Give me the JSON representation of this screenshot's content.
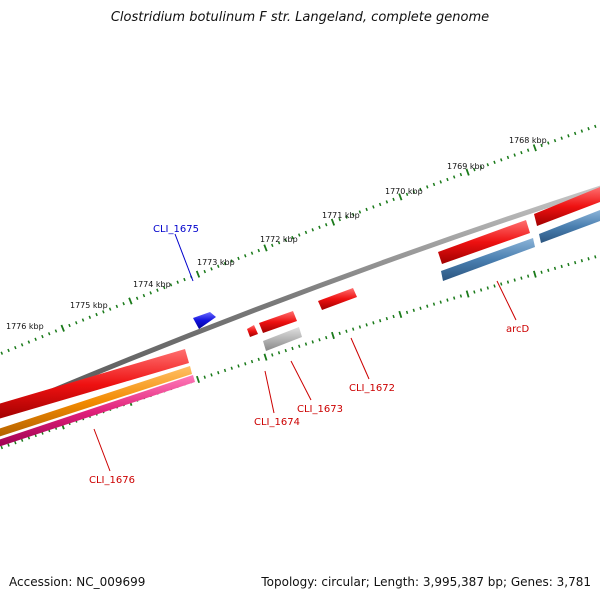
{
  "title": "Clostridium botulinum F str. Langeland, complete genome",
  "footer": {
    "accession": "Accession: NC_009699",
    "summary": "Topology: circular; Length: 3,995,387 bp; Genes: 3,781"
  },
  "scale": {
    "tick_labels": [
      "1768 kbp",
      "1769 kbp",
      "1770 kbp",
      "1771 kbp",
      "1772 kbp",
      "1773 kbp",
      "1774 kbp",
      "1775 kbp",
      "1776 kbp"
    ],
    "tick_color": "#1a7a1a"
  },
  "backbone_color": "#8a8a8a",
  "gene_labels": [
    {
      "text": "CLI_1675",
      "color": "#0000cc"
    },
    {
      "text": "arcD",
      "color": "#cc0000"
    },
    {
      "text": "CLI_1672",
      "color": "#cc0000"
    },
    {
      "text": "CLI_1673",
      "color": "#cc0000"
    },
    {
      "text": "CLI_1674",
      "color": "#cc0000"
    },
    {
      "text": "CLI_1676",
      "color": "#cc0000"
    }
  ],
  "feature_colors": {
    "red": "#ee1111",
    "blue": "#1111dd",
    "steel": "#4a7fb0",
    "gray": "#b5b5b5",
    "orange": "#f28a00",
    "pink": "#e0207a"
  }
}
